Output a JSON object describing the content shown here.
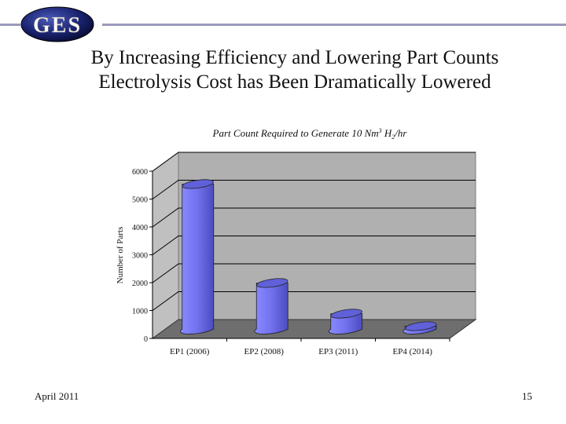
{
  "header": {
    "logo_text": "GES",
    "title_line1": "By Increasing Efficiency and Lowering Part Counts",
    "title_line2": "Electrolysis Cost has Been Dramatically Lowered",
    "accent_line_color": "#9a9abb"
  },
  "footer": {
    "date": "April 2011",
    "page_number": "15"
  },
  "chart_data": {
    "type": "bar",
    "style": "3d-cylinder",
    "title": "Part Count Required to Generate 10 Nm³ H₂/hr",
    "title_parts": {
      "main": "Part Count Required to Generate 10 Nm",
      "sup": "3",
      "mid": " H",
      "sub": "2",
      "end": "/hr"
    },
    "xlabel": "",
    "ylabel": "Number of Parts",
    "categories": [
      "EP1 (2006)",
      "EP2 (2008)",
      "EP3 (2011)",
      "EP4 (2014)"
    ],
    "values": [
      5200,
      1650,
      550,
      100
    ],
    "ylim": [
      0,
      6000
    ],
    "yticks": [
      0,
      1000,
      2000,
      3000,
      4000,
      5000,
      6000
    ],
    "grid": true,
    "legend": "none",
    "colors": {
      "bar": "#7f7ff0",
      "wall": "#b0b0b0",
      "floor": "#6e6e6e",
      "side_wall": "#c0c0c0"
    }
  }
}
